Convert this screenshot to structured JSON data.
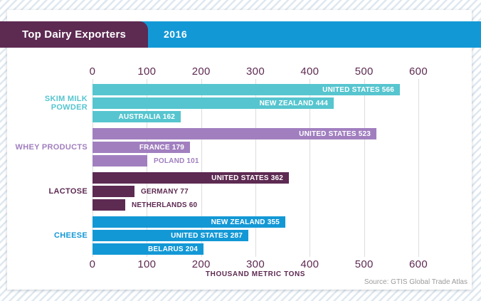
{
  "header": {
    "title": "Top Dairy Exporters",
    "year": "2016"
  },
  "source": "Source: GTIS Global Trade Atlas",
  "colors": {
    "banner_blue": "#1398d6",
    "banner_purple": "#5d2a52",
    "axis_text": "#5d2a52",
    "gridline": "#dddddd",
    "source_text": "#9b9b9b",
    "stripe": "#dfe8f0"
  },
  "chart_data": {
    "type": "bar",
    "orientation": "horizontal",
    "title": "Top Dairy Exporters",
    "subtitle": "2016",
    "xlabel": "THOUSAND METRIC TONS",
    "xlim": [
      0,
      600
    ],
    "xticks": [
      "0",
      "100",
      "200",
      "300",
      "400",
      "500",
      "600"
    ],
    "grid": true,
    "groups": [
      {
        "category": "SKIM MILK POWDER",
        "color": "#56c5cf",
        "bars": [
          {
            "label": "UNITED STATES",
            "value": 566,
            "label_inside": true
          },
          {
            "label": "NEW ZEALAND",
            "value": 444,
            "label_inside": true
          },
          {
            "label": "AUSTRALIA",
            "value": 162,
            "label_inside": true
          }
        ]
      },
      {
        "category": "WHEY PRODUCTS",
        "color": "#a17fbf",
        "bars": [
          {
            "label": "UNITED STATES",
            "value": 523,
            "label_inside": true
          },
          {
            "label": "FRANCE",
            "value": 179,
            "label_inside": true
          },
          {
            "label": "POLAND",
            "value": 101,
            "label_inside": false
          }
        ]
      },
      {
        "category": "LACTOSE",
        "color": "#5d2a52",
        "bars": [
          {
            "label": "UNITED STATES",
            "value": 362,
            "label_inside": true
          },
          {
            "label": "GERMANY",
            "value": 77,
            "label_inside": false
          },
          {
            "label": "NETHERLANDS",
            "value": 60,
            "label_inside": false
          }
        ]
      },
      {
        "category": "CHEESE",
        "color": "#1398d6",
        "bars": [
          {
            "label": "NEW ZEALAND",
            "value": 355,
            "label_inside": true
          },
          {
            "label": "UNITED STATES",
            "value": 287,
            "label_inside": true
          },
          {
            "label": "BELARUS",
            "value": 204,
            "label_inside": true
          }
        ]
      }
    ]
  }
}
